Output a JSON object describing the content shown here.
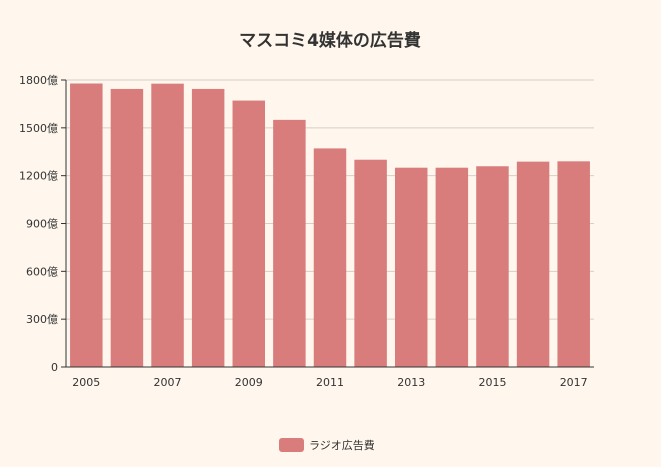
{
  "chart_data": {
    "type": "bar",
    "title": "マスコミ4媒体の広告費",
    "categories": [
      "2005",
      "2006",
      "2007",
      "2008",
      "2009",
      "2010",
      "2011",
      "2012",
      "2013",
      "2014",
      "2015",
      "2016",
      "2017"
    ],
    "x_tick_labels": [
      "2005",
      "",
      "2007",
      "",
      "2009",
      "",
      "2011",
      "",
      "2013",
      "",
      "2015",
      "",
      "2017"
    ],
    "series": [
      {
        "name": "ラジオ広告費",
        "color": "#d87c7c",
        "values": [
          1778,
          1744,
          1777,
          1744,
          1671,
          1550,
          1371,
          1300,
          1250,
          1250,
          1259,
          1288,
          1290
        ]
      }
    ],
    "y_ticks": [
      "0",
      "300億",
      "600億",
      "900億",
      "1200億",
      "1500億",
      "1800億"
    ],
    "y_tick_values": [
      0,
      300,
      600,
      900,
      1200,
      1500,
      1800
    ],
    "ylim": [
      0,
      1800
    ],
    "grid": true,
    "legend_position": "bottom-center"
  }
}
